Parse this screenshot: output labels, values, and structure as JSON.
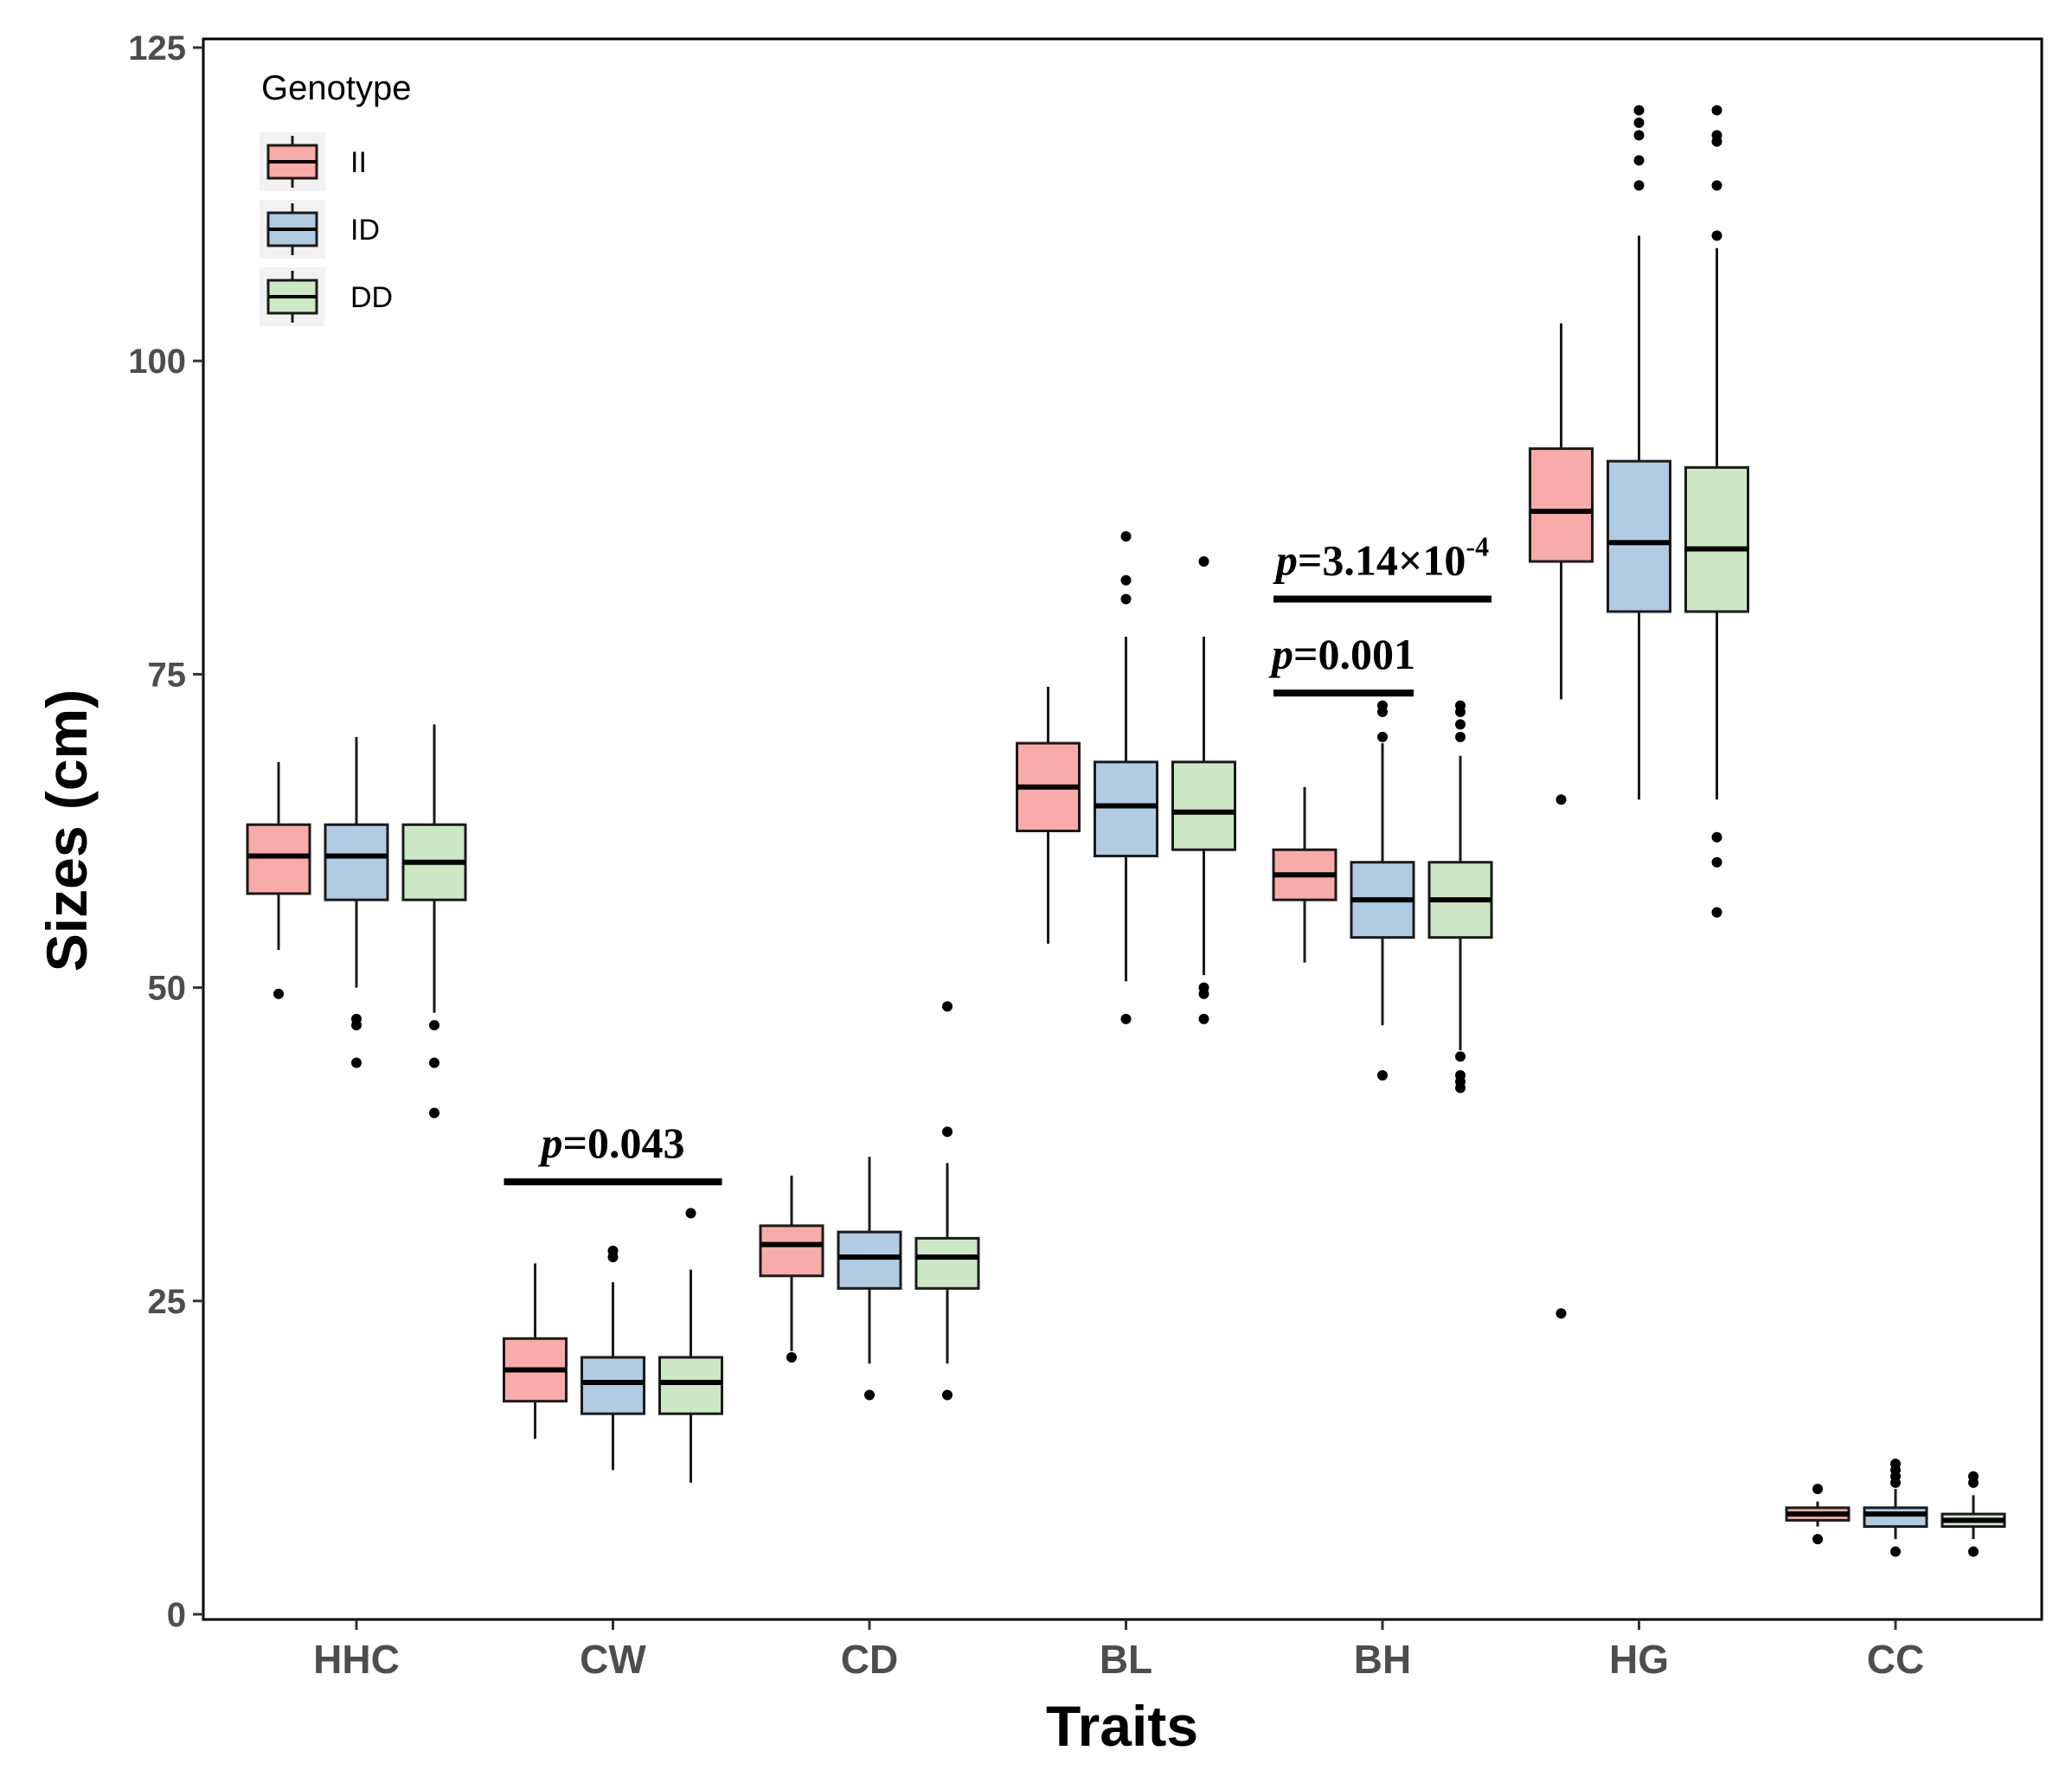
{
  "chart_data": {
    "type": "boxplot",
    "title": "",
    "xlabel": "Traits",
    "ylabel": "Sizes (cm)",
    "ylim": [
      0,
      125
    ],
    "y_ticks": [
      0,
      25,
      50,
      75,
      100,
      125
    ],
    "y_tick_labels": [
      "0",
      "25",
      "50",
      "75",
      "100",
      "125"
    ],
    "grid": false,
    "legend": {
      "title": "Genotype",
      "position": "top-left",
      "entries": [
        {
          "label": "II",
          "color": "#F8ABA8"
        },
        {
          "label": "ID",
          "color": "#B1CBE3"
        },
        {
          "label": "DD",
          "color": "#CCE8C4"
        }
      ]
    },
    "categories": [
      "HHC",
      "CW",
      "CD",
      "BL",
      "BH",
      "HG",
      "CC"
    ],
    "series": [
      {
        "name": "II",
        "color": "#F8ABA8",
        "boxes": [
          {
            "min": 53,
            "q1": 57.5,
            "median": 60.5,
            "q3": 63,
            "max": 68,
            "outliers": [
              49.5
            ]
          },
          {
            "min": 14,
            "q1": 17,
            "median": 19.5,
            "q3": 22,
            "max": 28,
            "outliers": []
          },
          {
            "min": 21,
            "q1": 27,
            "median": 29.5,
            "q3": 31,
            "max": 35,
            "outliers": [
              20.5
            ]
          },
          {
            "min": 53.5,
            "q1": 62.5,
            "median": 66,
            "q3": 69.5,
            "max": 74,
            "outliers": []
          },
          {
            "min": 52,
            "q1": 57,
            "median": 59,
            "q3": 61,
            "max": 66,
            "outliers": []
          },
          {
            "min": 73,
            "q1": 84,
            "median": 88,
            "q3": 93,
            "max": 103,
            "outliers": [
              65,
              24
            ]
          },
          {
            "min": 7,
            "q1": 7.5,
            "median": 8,
            "q3": 8.5,
            "max": 9,
            "outliers": [
              6,
              10
            ]
          }
        ]
      },
      {
        "name": "ID",
        "color": "#B1CBE3",
        "boxes": [
          {
            "min": 50,
            "q1": 57,
            "median": 60.5,
            "q3": 63,
            "max": 70,
            "outliers": [
              47.5,
              47,
              44
            ]
          },
          {
            "min": 11.5,
            "q1": 16,
            "median": 18.5,
            "q3": 20.5,
            "max": 26.5,
            "outliers": [
              29,
              28.5
            ]
          },
          {
            "min": 20,
            "q1": 26,
            "median": 28.5,
            "q3": 30.5,
            "max": 36.5,
            "outliers": [
              17.5
            ]
          },
          {
            "min": 50.5,
            "q1": 60.5,
            "median": 64.5,
            "q3": 68,
            "max": 78,
            "outliers": [
              47.5,
              81,
              82.5,
              86
            ]
          },
          {
            "min": 47,
            "q1": 54,
            "median": 57,
            "q3": 60,
            "max": 69.5,
            "outliers": [
              43,
              70,
              72,
              72.5
            ]
          },
          {
            "min": 65,
            "q1": 80,
            "median": 85.5,
            "q3": 92,
            "max": 110,
            "outliers": [
              114,
              116,
              118,
              119,
              120
            ]
          },
          {
            "min": 6,
            "q1": 7,
            "median": 8,
            "q3": 8.5,
            "max": 10,
            "outliers": [
              5,
              10.5,
              11,
              11.5,
              12
            ]
          }
        ]
      },
      {
        "name": "DD",
        "color": "#CCE8C4",
        "boxes": [
          {
            "min": 48,
            "q1": 57,
            "median": 60,
            "q3": 63,
            "max": 71,
            "outliers": [
              47,
              44,
              40
            ]
          },
          {
            "min": 10.5,
            "q1": 16,
            "median": 18.5,
            "q3": 20.5,
            "max": 27.5,
            "outliers": [
              32
            ]
          },
          {
            "min": 20,
            "q1": 26,
            "median": 28.5,
            "q3": 30,
            "max": 36,
            "outliers": [
              17.5,
              38.5,
              48.5
            ]
          },
          {
            "min": 51,
            "q1": 61,
            "median": 64,
            "q3": 68,
            "max": 78,
            "outliers": [
              49.5,
              50,
              47.5,
              84
            ]
          },
          {
            "min": 45,
            "q1": 54,
            "median": 57,
            "q3": 60,
            "max": 68.5,
            "outliers": [
              44.5,
              43,
              42.5,
              42,
              70,
              71,
              72,
              72.5
            ]
          },
          {
            "min": 65,
            "q1": 80,
            "median": 85,
            "q3": 91.5,
            "max": 109,
            "outliers": [
              62,
              60,
              56,
              110,
              114,
              117.5,
              118,
              120
            ]
          },
          {
            "min": 6,
            "q1": 7,
            "median": 7.5,
            "q3": 8,
            "max": 9.5,
            "outliers": [
              5,
              10.5,
              11
            ]
          }
        ]
      }
    ],
    "annotations": [
      {
        "text": "=0.043",
        "prefix": "p",
        "category": "CW",
        "from": "II",
        "to": "DD",
        "y": 34.5
      },
      {
        "text": "=0.001",
        "prefix": "p",
        "category": "BH",
        "from": "II",
        "to": "ID",
        "y": 73.5
      },
      {
        "text": "=3.14×10",
        "prefix": "p",
        "superscript": "-4",
        "category": "BH",
        "from": "II",
        "to": "DD",
        "y": 81
      }
    ]
  }
}
